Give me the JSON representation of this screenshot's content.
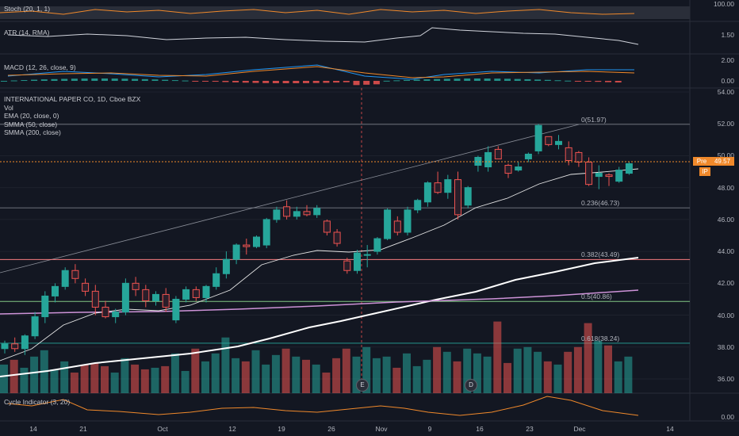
{
  "indicators": {
    "stoch": "Stoch (20, 1, 1)",
    "atr": "ATR (14, RMA)",
    "macd": "MACD (12, 26, close, 9)",
    "cycle": "Cycle Indicator (3, 20)"
  },
  "main_legend": {
    "symbol": "INTERNATIONAL PAPER CO, 1D, Cboe BZX",
    "vol": "Vol",
    "ema": "EMA (20, close, 0)",
    "smma50": "SMMA (50, close)",
    "smma200": "SMMA (200, close)"
  },
  "axis": {
    "stoch": [
      "100.00"
    ],
    "atr": [
      "1.50"
    ],
    "macd": [
      "2.00",
      "0.00"
    ],
    "price": [
      "54.00",
      "52.00",
      "50.00",
      "48.00",
      "46.00",
      "44.00",
      "42.00",
      "40.00",
      "38.00",
      "36.00"
    ],
    "cycle": [
      "0.00"
    ]
  },
  "fib_levels": [
    {
      "label": "0(51.97)",
      "price": 51.97
    },
    {
      "label": "0.236(46.73)",
      "price": 46.73
    },
    {
      "label": "0.382(43.49)",
      "price": 43.49
    },
    {
      "label": "0.5(40.86)",
      "price": 40.86
    },
    {
      "label": "0.618(38.24)",
      "price": 38.24
    }
  ],
  "dates": [
    "14",
    "21",
    "Oct",
    "12",
    "19",
    "26",
    "Nov",
    "9",
    "16",
    "23",
    "Dec",
    "14"
  ],
  "badges": {
    "pre": "Pre",
    "price": "49.57",
    "ip": "IP"
  },
  "events": {
    "earnings": "E",
    "dividend": "D"
  },
  "colors": {
    "up": "#26a69a",
    "down": "#ef5350",
    "bg": "#131722",
    "accent": "#f0892b"
  },
  "chart_data": {
    "type": "candlestick",
    "price_range": [
      35,
      54
    ],
    "candles": [
      [
        37.9,
        38.4,
        37.6,
        38.2
      ],
      [
        38.2,
        38.6,
        37.7,
        37.9
      ],
      [
        37.9,
        38.8,
        37.5,
        38.7
      ],
      [
        38.7,
        40.2,
        38.5,
        39.9
      ],
      [
        39.9,
        41.5,
        39.5,
        41.2
      ],
      [
        41.2,
        42.0,
        40.8,
        41.8
      ],
      [
        41.8,
        43.0,
        41.6,
        42.8
      ],
      [
        42.8,
        43.2,
        42.0,
        42.3
      ],
      [
        42.0,
        42.3,
        41.2,
        41.5
      ],
      [
        41.5,
        41.9,
        40.0,
        40.5
      ],
      [
        40.5,
        40.9,
        39.8,
        39.9
      ],
      [
        39.9,
        40.4,
        39.5,
        40.2
      ],
      [
        40.2,
        42.3,
        40.0,
        42.0
      ],
      [
        42.0,
        42.4,
        41.2,
        41.6
      ],
      [
        41.6,
        41.9,
        40.5,
        40.9
      ],
      [
        40.9,
        41.5,
        40.6,
        41.3
      ],
      [
        41.3,
        41.7,
        40.2,
        40.5
      ],
      [
        39.7,
        41.2,
        39.5,
        41.0
      ],
      [
        41.0,
        41.8,
        40.8,
        41.6
      ],
      [
        41.6,
        41.8,
        40.9,
        41.1
      ],
      [
        41.1,
        41.9,
        40.8,
        41.8
      ],
      [
        41.8,
        43.0,
        41.6,
        42.6
      ],
      [
        42.6,
        44.0,
        42.3,
        43.5
      ],
      [
        43.5,
        44.5,
        43.2,
        44.4
      ],
      [
        44.4,
        44.8,
        43.8,
        44.3
      ],
      [
        44.3,
        45.0,
        44.2,
        44.9
      ],
      [
        44.4,
        46.1,
        44.2,
        46.0
      ],
      [
        46.0,
        46.8,
        45.8,
        46.6
      ],
      [
        46.8,
        47.2,
        46.0,
        46.2
      ],
      [
        46.2,
        46.8,
        46.0,
        46.5
      ],
      [
        46.5,
        46.9,
        46.2,
        46.3
      ],
      [
        46.3,
        46.9,
        46.1,
        46.7
      ],
      [
        45.9,
        46.0,
        45.0,
        45.2
      ],
      [
        45.2,
        45.4,
        44.3,
        44.5
      ],
      [
        43.4,
        43.6,
        42.6,
        42.8
      ],
      [
        42.8,
        44.1,
        42.6,
        43.9
      ],
      [
        43.8,
        44.4,
        43.0,
        43.8
      ],
      [
        44.0,
        44.9,
        43.8,
        44.8
      ],
      [
        44.8,
        46.7,
        44.7,
        46.6
      ],
      [
        45.9,
        46.2,
        45.0,
        45.2
      ],
      [
        45.2,
        46.8,
        45.0,
        46.6
      ],
      [
        46.6,
        47.3,
        46.4,
        47.2
      ],
      [
        47.1,
        48.4,
        46.8,
        48.3
      ],
      [
        48.3,
        49.0,
        47.6,
        47.7
      ],
      [
        47.7,
        48.8,
        47.3,
        48.5
      ],
      [
        48.5,
        49.0,
        46.0,
        46.3
      ],
      [
        46.9,
        48.1,
        46.7,
        48.0
      ],
      [
        49.4,
        50.0,
        49.0,
        49.9
      ],
      [
        49.3,
        50.6,
        49.0,
        50.2
      ],
      [
        50.4,
        50.6,
        49.8,
        49.8
      ],
      [
        49.4,
        49.5,
        48.6,
        48.9
      ],
      [
        49.1,
        49.6,
        49.0,
        49.3
      ],
      [
        49.8,
        50.2,
        49.6,
        50.1
      ],
      [
        50.3,
        52.0,
        50.1,
        51.9
      ],
      [
        51.2,
        51.2,
        50.6,
        50.7
      ],
      [
        50.7,
        51.3,
        50.4,
        50.9
      ],
      [
        50.5,
        50.9,
        49.4,
        49.7
      ],
      [
        50.2,
        50.3,
        49.3,
        49.6
      ],
      [
        49.6,
        49.9,
        48.1,
        48.2
      ],
      [
        48.7,
        49.4,
        47.9,
        48.9
      ],
      [
        48.8,
        48.9,
        48.1,
        48.7
      ],
      [
        48.4,
        49.3,
        48.3,
        49.1
      ],
      [
        48.9,
        49.6,
        48.8,
        49.5
      ]
    ],
    "volume": [
      36.9,
      37.2,
      36.7,
      37.4,
      37.8,
      36.6,
      37.1,
      36.4,
      36.9,
      37.0,
      36.8,
      36.4,
      37.3,
      36.9,
      36.6,
      36.7,
      36.8,
      37.6,
      36.5,
      37.9,
      37.1,
      37.6,
      38.6,
      37.3,
      37.1,
      37.8,
      36.9,
      37.5,
      37.9,
      37.4,
      37.2,
      36.9,
      36.4,
      37.3,
      37.9,
      37.4,
      38.0,
      37.3,
      37.4,
      36.7,
      37.6,
      36.8,
      37.2,
      38.0,
      37.7,
      37.1,
      37.9,
      37.6,
      37.4,
      39.6,
      37.0,
      37.9,
      38.0,
      37.7,
      37.1,
      36.9,
      37.7,
      38.0,
      39.5,
      38.4,
      38.1,
      37.1,
      37.4
    ]
  }
}
